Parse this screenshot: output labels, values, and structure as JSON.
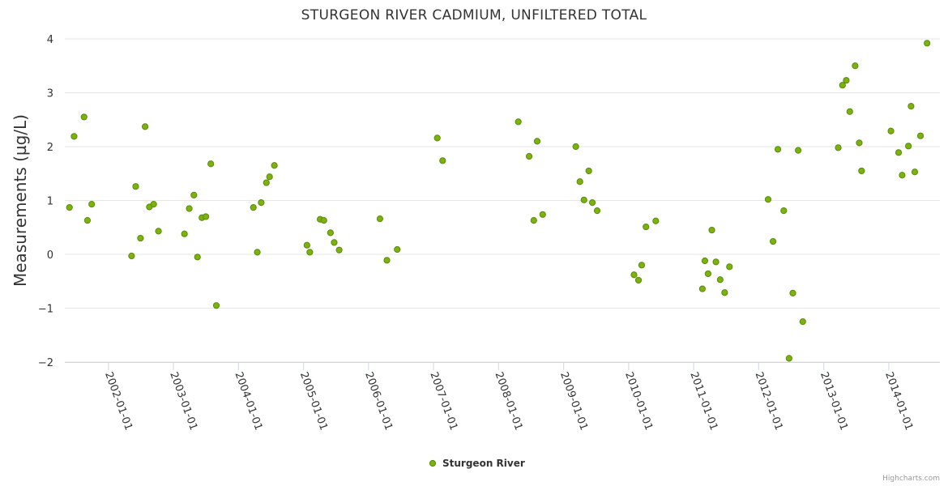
{
  "chart_data": {
    "type": "scatter",
    "title": "STURGEON RIVER CADMIUM, UNFILTERED TOTAL",
    "ylabel": "Measurements (µg/L)",
    "xlabel": "",
    "ylim": [
      -2,
      4
    ],
    "xlim": [
      "2001-05-01",
      "2014-10-15"
    ],
    "y_ticks": [
      {
        "value": -2,
        "label": "−2"
      },
      {
        "value": -1,
        "label": "−1"
      },
      {
        "value": 0,
        "label": "0"
      },
      {
        "value": 1,
        "label": "1"
      },
      {
        "value": 2,
        "label": "2"
      },
      {
        "value": 3,
        "label": "3"
      },
      {
        "value": 4,
        "label": "4"
      }
    ],
    "x_ticks": [
      "2002-01-01",
      "2003-01-01",
      "2004-01-01",
      "2005-01-01",
      "2006-01-01",
      "2007-01-01",
      "2008-01-01",
      "2009-01-01",
      "2010-01-01",
      "2011-01-01",
      "2012-01-01",
      "2013-01-01",
      "2014-01-01"
    ],
    "grid": true,
    "legend_position": "bottom-center",
    "series": [
      {
        "name": "Sturgeon River",
        "color": "#7cb20e",
        "points": [
          {
            "x": "2001-05-27",
            "y": 0.87
          },
          {
            "x": "2001-06-22",
            "y": 2.19
          },
          {
            "x": "2001-08-17",
            "y": 2.55
          },
          {
            "x": "2001-09-05",
            "y": 0.63
          },
          {
            "x": "2001-09-29",
            "y": 0.93
          },
          {
            "x": "2002-05-11",
            "y": -0.03
          },
          {
            "x": "2002-06-03",
            "y": 1.26
          },
          {
            "x": "2002-06-30",
            "y": 0.3
          },
          {
            "x": "2002-07-26",
            "y": 2.37
          },
          {
            "x": "2002-08-19",
            "y": 0.88
          },
          {
            "x": "2002-09-12",
            "y": 0.93
          },
          {
            "x": "2002-10-09",
            "y": 0.43
          },
          {
            "x": "2003-03-04",
            "y": 0.38
          },
          {
            "x": "2003-03-31",
            "y": 0.85
          },
          {
            "x": "2003-04-26",
            "y": 1.1
          },
          {
            "x": "2003-05-16",
            "y": -0.05
          },
          {
            "x": "2003-06-10",
            "y": 0.68
          },
          {
            "x": "2003-07-02",
            "y": 0.7
          },
          {
            "x": "2003-07-30",
            "y": 1.68
          },
          {
            "x": "2003-08-30",
            "y": -0.95
          },
          {
            "x": "2004-03-25",
            "y": 0.87
          },
          {
            "x": "2004-04-16",
            "y": 0.04
          },
          {
            "x": "2004-05-08",
            "y": 0.96
          },
          {
            "x": "2004-06-06",
            "y": 1.33
          },
          {
            "x": "2004-06-24",
            "y": 1.44
          },
          {
            "x": "2004-07-21",
            "y": 1.65
          },
          {
            "x": "2005-01-20",
            "y": 0.17
          },
          {
            "x": "2005-02-05",
            "y": 0.04
          },
          {
            "x": "2005-04-04",
            "y": 0.65
          },
          {
            "x": "2005-04-25",
            "y": 0.63
          },
          {
            "x": "2005-06-01",
            "y": 0.4
          },
          {
            "x": "2005-06-22",
            "y": 0.22
          },
          {
            "x": "2005-07-20",
            "y": 0.08
          },
          {
            "x": "2006-03-06",
            "y": 0.66
          },
          {
            "x": "2006-04-14",
            "y": -0.11
          },
          {
            "x": "2006-06-11",
            "y": 0.09
          },
          {
            "x": "2007-01-22",
            "y": 2.16
          },
          {
            "x": "2007-02-21",
            "y": 1.74
          },
          {
            "x": "2008-04-21",
            "y": 2.46
          },
          {
            "x": "2008-06-21",
            "y": 1.82
          },
          {
            "x": "2008-07-17",
            "y": 0.63
          },
          {
            "x": "2008-08-05",
            "y": 2.1
          },
          {
            "x": "2008-09-05",
            "y": 0.74
          },
          {
            "x": "2009-03-10",
            "y": 2.0
          },
          {
            "x": "2009-04-02",
            "y": 1.35
          },
          {
            "x": "2009-04-25",
            "y": 1.01
          },
          {
            "x": "2009-05-22",
            "y": 1.55
          },
          {
            "x": "2009-06-11",
            "y": 0.96
          },
          {
            "x": "2009-07-08",
            "y": 0.81
          },
          {
            "x": "2010-01-31",
            "y": -0.38
          },
          {
            "x": "2010-02-25",
            "y": -0.48
          },
          {
            "x": "2010-03-15",
            "y": -0.2
          },
          {
            "x": "2010-04-08",
            "y": 0.51
          },
          {
            "x": "2010-06-02",
            "y": 0.62
          },
          {
            "x": "2011-02-19",
            "y": -0.64
          },
          {
            "x": "2011-03-05",
            "y": -0.12
          },
          {
            "x": "2011-03-23",
            "y": -0.36
          },
          {
            "x": "2011-04-13",
            "y": 0.45
          },
          {
            "x": "2011-05-06",
            "y": -0.14
          },
          {
            "x": "2011-05-30",
            "y": -0.47
          },
          {
            "x": "2011-06-24",
            "y": -0.71
          },
          {
            "x": "2011-07-21",
            "y": -0.23
          },
          {
            "x": "2012-02-23",
            "y": 1.02
          },
          {
            "x": "2012-03-22",
            "y": 0.24
          },
          {
            "x": "2012-04-18",
            "y": 1.95
          },
          {
            "x": "2012-05-21",
            "y": 0.81
          },
          {
            "x": "2012-06-20",
            "y": -1.93
          },
          {
            "x": "2012-07-11",
            "y": -0.72
          },
          {
            "x": "2012-08-10",
            "y": 1.93
          },
          {
            "x": "2012-09-05",
            "y": -1.25
          },
          {
            "x": "2013-03-23",
            "y": 1.98
          },
          {
            "x": "2013-04-16",
            "y": 3.14
          },
          {
            "x": "2013-05-07",
            "y": 3.23
          },
          {
            "x": "2013-05-27",
            "y": 2.65
          },
          {
            "x": "2013-06-26",
            "y": 3.5
          },
          {
            "x": "2013-07-19",
            "y": 2.07
          },
          {
            "x": "2013-08-01",
            "y": 1.55
          },
          {
            "x": "2014-01-13",
            "y": 2.29
          },
          {
            "x": "2014-02-25",
            "y": 1.89
          },
          {
            "x": "2014-03-17",
            "y": 1.47
          },
          {
            "x": "2014-04-21",
            "y": 2.01
          },
          {
            "x": "2014-05-06",
            "y": 2.75
          },
          {
            "x": "2014-05-27",
            "y": 1.53
          },
          {
            "x": "2014-06-28",
            "y": 2.2
          },
          {
            "x": "2014-08-04",
            "y": 3.92
          }
        ]
      }
    ]
  },
  "credits": "Highcharts.com",
  "colors": {
    "marker_fill": "#7cb20e",
    "marker_stroke": "#5a8a0a",
    "grid": "#e6e6e6",
    "axis": "#333333"
  }
}
